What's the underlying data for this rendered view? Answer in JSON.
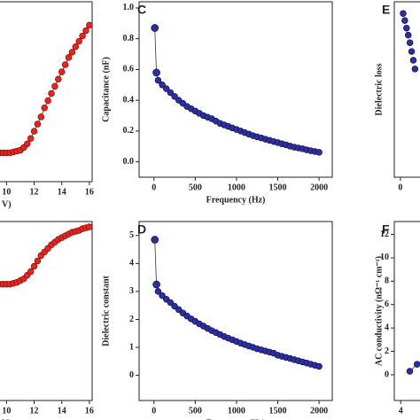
{
  "chart_data": [
    {
      "type": "line",
      "xlabel": "V)",
      "x": [
        9.5,
        9.75,
        10,
        10.25,
        10.5,
        10.75,
        11,
        11.25,
        11.5,
        11.75,
        12,
        12.25,
        12.5,
        12.75,
        13,
        13.25,
        13.5,
        13.75,
        14,
        14.25,
        14.5,
        14.75,
        15,
        15.25,
        15.5,
        15.75,
        16
      ],
      "values": [
        0.16,
        0.16,
        0.16,
        0.16,
        0.165,
        0.17,
        0.175,
        0.19,
        0.21,
        0.24,
        0.28,
        0.32,
        0.36,
        0.41,
        0.45,
        0.49,
        0.53,
        0.57,
        0.61,
        0.65,
        0.69,
        0.72,
        0.75,
        0.78,
        0.81,
        0.84,
        0.87
      ],
      "color": "#e3261e",
      "edge": "#8a0c0c",
      "xlim": [
        9.4,
        16.2
      ],
      "ylim": [
        0,
        1
      ],
      "xticks": [
        10,
        12,
        14,
        16
      ],
      "yticks": []
    },
    {
      "type": "line",
      "label": "C",
      "xlabel": "Frequency (Hz)",
      "ylabel": "Capacitance (nF)",
      "x": [
        10,
        30,
        50,
        100,
        150,
        200,
        250,
        300,
        350,
        400,
        450,
        500,
        550,
        600,
        650,
        700,
        750,
        800,
        850,
        900,
        950,
        1000,
        1050,
        1100,
        1150,
        1200,
        1250,
        1300,
        1350,
        1400,
        1450,
        1500,
        1550,
        1600,
        1650,
        1700,
        1750,
        1800,
        1850,
        1900,
        1950,
        2000
      ],
      "values": [
        0.87,
        0.58,
        0.53,
        0.5,
        0.475,
        0.45,
        0.425,
        0.4,
        0.38,
        0.36,
        0.345,
        0.33,
        0.315,
        0.3,
        0.29,
        0.28,
        0.265,
        0.25,
        0.24,
        0.23,
        0.22,
        0.21,
        0.2,
        0.19,
        0.18,
        0.17,
        0.162,
        0.155,
        0.147,
        0.14,
        0.132,
        0.125,
        0.117,
        0.11,
        0.102,
        0.095,
        0.09,
        0.085,
        0.078,
        0.072,
        0.067,
        0.062
      ],
      "color": "#2d2f9e",
      "edge": "#10124f",
      "xlim": [
        -180,
        2160
      ],
      "ylim": [
        -0.1,
        1.04
      ],
      "xticks": [
        0,
        500,
        1000,
        1500,
        2000
      ],
      "yticks": [
        {
          "value": 0,
          "label": "0.0"
        },
        0.2,
        0.4,
        0.6,
        0.8,
        {
          "value": 1,
          "label": "1.0"
        }
      ]
    },
    {
      "type": "scatter",
      "label": "E",
      "ylabel": "Dielectric loss",
      "x": [
        80,
        130,
        180,
        230,
        280,
        330,
        380,
        430
      ],
      "values": [
        2.8,
        2.68,
        2.55,
        2.43,
        2.3,
        2.15,
        2.0,
        1.85
      ],
      "color": "#2d2f9e",
      "edge": "#10124f",
      "xlim": [
        -180,
        760
      ],
      "ylim": [
        0,
        3
      ],
      "xticks": [
        0
      ],
      "yticks": []
    },
    {
      "type": "line",
      "xlabel": "V)",
      "x": [
        9.5,
        9.75,
        10,
        10.25,
        10.5,
        10.75,
        11,
        11.25,
        11.5,
        11.75,
        12,
        12.25,
        12.5,
        12.75,
        13,
        13.25,
        13.5,
        13.75,
        14,
        14.25,
        14.5,
        14.75,
        15,
        15.25,
        15.5,
        15.75,
        16
      ],
      "values": [
        0.65,
        0.65,
        0.65,
        0.65,
        0.655,
        0.66,
        0.67,
        0.68,
        0.7,
        0.72,
        0.75,
        0.78,
        0.81,
        0.83,
        0.85,
        0.87,
        0.885,
        0.9,
        0.91,
        0.92,
        0.93,
        0.94,
        0.945,
        0.95,
        0.96,
        0.965,
        0.97
      ],
      "color": "#e3261e",
      "edge": "#8a0c0c",
      "xlim": [
        9.4,
        16.2
      ],
      "ylim": [
        0,
        1
      ],
      "xticks": [
        10,
        12,
        14,
        16
      ],
      "yticks": []
    },
    {
      "type": "line",
      "label": "D",
      "xlabel": "Frequency (Hz)",
      "ylabel": "Dielectric constant",
      "x": [
        10,
        30,
        50,
        100,
        150,
        200,
        250,
        300,
        350,
        400,
        450,
        500,
        550,
        600,
        650,
        700,
        750,
        800,
        850,
        900,
        950,
        1000,
        1050,
        1100,
        1150,
        1200,
        1250,
        1300,
        1350,
        1400,
        1450,
        1500,
        1550,
        1600,
        1650,
        1700,
        1750,
        1800,
        1850,
        1900,
        1950,
        2000
      ],
      "values": [
        4.85,
        3.25,
        3.0,
        2.85,
        2.72,
        2.6,
        2.47,
        2.35,
        2.23,
        2.12,
        2.02,
        1.93,
        1.84,
        1.76,
        1.68,
        1.6,
        1.53,
        1.46,
        1.39,
        1.33,
        1.27,
        1.21,
        1.15,
        1.1,
        1.05,
        1.0,
        0.95,
        0.91,
        0.87,
        0.83,
        0.79,
        0.72,
        0.68,
        0.64,
        0.6,
        0.56,
        0.52,
        0.48,
        0.44,
        0.4,
        0.36,
        0.32
      ],
      "color": "#2d2f9e",
      "edge": "#10124f",
      "xlim": [
        -180,
        2160
      ],
      "ylim": [
        -0.9,
        5.5
      ],
      "xticks": [
        0,
        500,
        1000,
        1500,
        2000
      ],
      "yticks": [
        0,
        1,
        2,
        3,
        4,
        5
      ]
    },
    {
      "type": "line",
      "label": "F",
      "ylabel": "AC conductivity (nΩ⁻¹ cm⁻¹)",
      "x": [
        4.5,
        4.9,
        5.3
      ],
      "values": [
        0.3,
        0.9,
        1.3
      ],
      "color": "#2d2f9e",
      "edge": "#10124f",
      "xlim": [
        3.65,
        5.4
      ],
      "ylim": [
        -2.2,
        13.1
      ],
      "xticks": [
        4
      ],
      "yticks": [
        0,
        2,
        4,
        6,
        8,
        10,
        12
      ]
    }
  ]
}
